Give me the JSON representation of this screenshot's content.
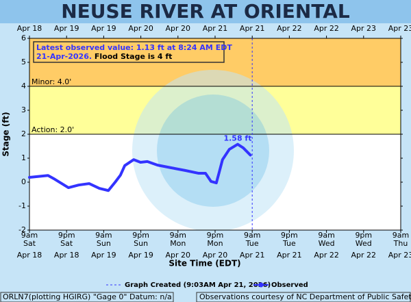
{
  "chart_data": {
    "type": "line",
    "title": "NEUSE RIVER AT ORIENTAL",
    "annotation": {
      "line1": "Latest observed value: 1.13 ft at 8:24 AM EDT",
      "line2a": "21-Apr-2026.",
      "line2b": "Flood Stage is 4 ft"
    },
    "ylabel": "Stage (ft)",
    "xlabel": "Site Time (EDT)",
    "xlim": [
      0,
      120
    ],
    "xticks": [
      {
        "value": 0,
        "label": "9am"
      },
      {
        "value": 12,
        "label": "9pm"
      },
      {
        "value": 24,
        "label": "9am"
      },
      {
        "value": 36,
        "label": "9pm"
      },
      {
        "value": 48,
        "label": "9am"
      },
      {
        "value": 60,
        "label": "9pm"
      },
      {
        "value": 72,
        "label": "9am"
      },
      {
        "value": 84,
        "label": "9pm"
      },
      {
        "value": 96,
        "label": "9am"
      },
      {
        "value": 108,
        "label": "9pm"
      },
      {
        "value": 120,
        "label": "9am"
      }
    ],
    "xtick_days": [
      "Sat",
      "Sat",
      "Sun",
      "Sun",
      "Mon",
      "Mon",
      "Tue",
      "Tue",
      "Wed",
      "Wed",
      "Thu"
    ],
    "xtick_dates": [
      "Apr 18",
      "Apr 18",
      "Apr 19",
      "Apr 19",
      "Apr 20",
      "Apr 20",
      "Apr 21",
      "Apr 21",
      "Apr 22",
      "Apr 22",
      "Apr 23"
    ],
    "top_dates": [
      "Apr 18",
      "Apr 19",
      "Apr 19",
      "Apr 20",
      "Apr 20",
      "Apr 21",
      "Apr 21",
      "Apr 22",
      "Apr 22",
      "Apr 23",
      "Apr 23"
    ],
    "ylim": [
      -2,
      6
    ],
    "yticks": [
      -2,
      -1,
      0,
      1,
      2,
      3,
      4,
      5,
      6
    ],
    "thresholds": [
      {
        "value": 4,
        "label": "Minor: 4.0'",
        "color": "#ffcc66"
      },
      {
        "value": 2,
        "label": "Action: 2.0'",
        "color": "#ffff99"
      }
    ],
    "created": {
      "x": 72,
      "label": "Graph Created (9:03AM Apr 21, 2026)",
      "color": "#3333ff"
    },
    "series": [
      {
        "name": "Observed",
        "color": "#3333ff",
        "x": [
          0,
          6.0,
          8.2,
          12.6,
          15.9,
          19.3,
          22.6,
          25.5,
          27.7,
          29.4,
          30.8,
          33.7,
          35.9,
          38.1,
          41.4,
          45.8,
          50.3,
          54.7,
          56.9,
          58.7,
          60.4,
          61.3,
          62.4,
          64.6,
          67.3,
          69.1,
          71.4
        ],
        "values": [
          0.2,
          0.28,
          0.12,
          -0.23,
          -0.12,
          -0.06,
          -0.26,
          -0.35,
          0.0,
          0.29,
          0.69,
          0.94,
          0.83,
          0.86,
          0.71,
          0.6,
          0.49,
          0.37,
          0.37,
          0.03,
          -0.03,
          0.4,
          0.94,
          1.37,
          1.58,
          1.43,
          1.13
        ],
        "value_labels": [
          null,
          null,
          null,
          null,
          null,
          null,
          null,
          null,
          null,
          null,
          null,
          null,
          null,
          null,
          null,
          null,
          null,
          null,
          null,
          null,
          null,
          null,
          null,
          null,
          "1.58 ft",
          null,
          null
        ]
      }
    ],
    "footer_left": "ORLN7(plotting HGIRG) \"Gage 0\" Datum: n/a",
    "footer_right": "Observations courtesy of NC Department of Public Safety"
  }
}
